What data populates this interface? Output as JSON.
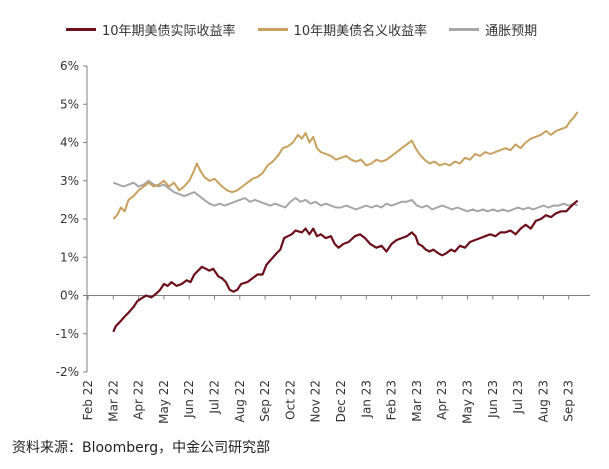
{
  "chart_data": {
    "type": "line",
    "title": "",
    "xlabel": "",
    "ylabel": "",
    "ylim": [
      -2,
      6
    ],
    "y_ticks": [
      "-2%",
      "-1%",
      "0%",
      "1%",
      "2%",
      "3%",
      "4%",
      "5%",
      "6%"
    ],
    "x_ticks": [
      "Feb 22",
      "Mar 22",
      "Apr 22",
      "May 22",
      "Jun 22",
      "Jul 22",
      "Aug 22",
      "Sep 22",
      "Oct 22",
      "Nov 22",
      "Dec 22",
      "Jan 23",
      "Feb 23",
      "Mar 23",
      "Apr 23",
      "May 23",
      "Jun 23",
      "Jul 23",
      "Aug 23",
      "Sep 23"
    ],
    "x_range": [
      "2022-02",
      "2023-09"
    ],
    "grid": false,
    "legend_position": "top",
    "x_unit": "months since Feb 22",
    "series": [
      {
        "name": "10年期美债实际收益率",
        "color": "#6b0f1a",
        "points": [
          [
            1.0,
            -0.95
          ],
          [
            1.1,
            -0.8
          ],
          [
            1.25,
            -0.7
          ],
          [
            1.45,
            -0.55
          ],
          [
            1.6,
            -0.45
          ],
          [
            1.8,
            -0.3
          ],
          [
            1.95,
            -0.15
          ],
          [
            2.1,
            -0.08
          ],
          [
            2.3,
            0.0
          ],
          [
            2.5,
            -0.05
          ],
          [
            2.7,
            0.05
          ],
          [
            2.85,
            0.15
          ],
          [
            3.0,
            0.3
          ],
          [
            3.15,
            0.25
          ],
          [
            3.3,
            0.35
          ],
          [
            3.5,
            0.25
          ],
          [
            3.7,
            0.3
          ],
          [
            3.9,
            0.4
          ],
          [
            4.05,
            0.35
          ],
          [
            4.2,
            0.55
          ],
          [
            4.35,
            0.65
          ],
          [
            4.5,
            0.75
          ],
          [
            4.65,
            0.7
          ],
          [
            4.8,
            0.65
          ],
          [
            4.95,
            0.7
          ],
          [
            5.05,
            0.6
          ],
          [
            5.15,
            0.5
          ],
          [
            5.3,
            0.45
          ],
          [
            5.45,
            0.35
          ],
          [
            5.6,
            0.15
          ],
          [
            5.75,
            0.1
          ],
          [
            5.9,
            0.15
          ],
          [
            6.05,
            0.3
          ],
          [
            6.3,
            0.35
          ],
          [
            6.5,
            0.45
          ],
          [
            6.7,
            0.55
          ],
          [
            6.9,
            0.55
          ],
          [
            7.05,
            0.8
          ],
          [
            7.25,
            0.95
          ],
          [
            7.45,
            1.1
          ],
          [
            7.6,
            1.2
          ],
          [
            7.75,
            1.5
          ],
          [
            7.9,
            1.55
          ],
          [
            8.05,
            1.6
          ],
          [
            8.2,
            1.7
          ],
          [
            8.45,
            1.65
          ],
          [
            8.6,
            1.75
          ],
          [
            8.75,
            1.6
          ],
          [
            8.9,
            1.75
          ],
          [
            9.05,
            1.55
          ],
          [
            9.2,
            1.6
          ],
          [
            9.4,
            1.5
          ],
          [
            9.6,
            1.55
          ],
          [
            9.75,
            1.35
          ],
          [
            9.9,
            1.25
          ],
          [
            10.0,
            1.3
          ],
          [
            10.1,
            1.35
          ],
          [
            10.3,
            1.4
          ],
          [
            10.55,
            1.55
          ],
          [
            10.75,
            1.6
          ],
          [
            10.95,
            1.5
          ],
          [
            11.15,
            1.35
          ],
          [
            11.4,
            1.25
          ],
          [
            11.6,
            1.3
          ],
          [
            11.8,
            1.15
          ],
          [
            12.0,
            1.35
          ],
          [
            12.2,
            1.45
          ],
          [
            12.4,
            1.5
          ],
          [
            12.6,
            1.55
          ],
          [
            12.8,
            1.65
          ],
          [
            12.95,
            1.55
          ],
          [
            13.05,
            1.35
          ],
          [
            13.2,
            1.3
          ],
          [
            13.35,
            1.2
          ],
          [
            13.5,
            1.15
          ],
          [
            13.65,
            1.2
          ],
          [
            13.85,
            1.1
          ],
          [
            14.0,
            1.05
          ],
          [
            14.15,
            1.1
          ],
          [
            14.35,
            1.2
          ],
          [
            14.5,
            1.15
          ],
          [
            14.7,
            1.3
          ],
          [
            14.9,
            1.25
          ],
          [
            15.1,
            1.4
          ],
          [
            15.3,
            1.45
          ],
          [
            15.5,
            1.5
          ],
          [
            15.7,
            1.55
          ],
          [
            15.9,
            1.6
          ],
          [
            16.1,
            1.55
          ],
          [
            16.3,
            1.65
          ],
          [
            16.5,
            1.65
          ],
          [
            16.7,
            1.7
          ],
          [
            16.9,
            1.6
          ],
          [
            17.1,
            1.75
          ],
          [
            17.3,
            1.85
          ],
          [
            17.5,
            1.75
          ],
          [
            17.7,
            1.95
          ],
          [
            17.9,
            2.0
          ],
          [
            18.1,
            2.1
          ],
          [
            18.3,
            2.05
          ],
          [
            18.5,
            2.15
          ],
          [
            18.7,
            2.2
          ],
          [
            18.9,
            2.2
          ],
          [
            19.05,
            2.3
          ],
          [
            19.2,
            2.4
          ],
          [
            19.35,
            2.48
          ]
        ]
      },
      {
        "name": "10年期美债名义收益率",
        "color": "#c8a060",
        "points": [
          [
            1.0,
            2.0
          ],
          [
            1.15,
            2.1
          ],
          [
            1.3,
            2.3
          ],
          [
            1.45,
            2.2
          ],
          [
            1.6,
            2.5
          ],
          [
            1.8,
            2.6
          ],
          [
            2.0,
            2.75
          ],
          [
            2.2,
            2.85
          ],
          [
            2.4,
            2.95
          ],
          [
            2.6,
            2.85
          ],
          [
            2.8,
            2.9
          ],
          [
            3.0,
            3.0
          ],
          [
            3.2,
            2.85
          ],
          [
            3.4,
            2.95
          ],
          [
            3.6,
            2.75
          ],
          [
            3.8,
            2.85
          ],
          [
            4.0,
            3.0
          ],
          [
            4.15,
            3.2
          ],
          [
            4.3,
            3.45
          ],
          [
            4.45,
            3.25
          ],
          [
            4.6,
            3.1
          ],
          [
            4.8,
            3.0
          ],
          [
            5.0,
            3.05
          ],
          [
            5.15,
            2.95
          ],
          [
            5.3,
            2.85
          ],
          [
            5.5,
            2.75
          ],
          [
            5.7,
            2.7
          ],
          [
            5.9,
            2.75
          ],
          [
            6.1,
            2.85
          ],
          [
            6.3,
            2.95
          ],
          [
            6.5,
            3.05
          ],
          [
            6.7,
            3.1
          ],
          [
            6.9,
            3.2
          ],
          [
            7.1,
            3.4
          ],
          [
            7.3,
            3.5
          ],
          [
            7.5,
            3.65
          ],
          [
            7.7,
            3.85
          ],
          [
            7.9,
            3.9
          ],
          [
            8.1,
            4.0
          ],
          [
            8.3,
            4.2
          ],
          [
            8.45,
            4.1
          ],
          [
            8.6,
            4.25
          ],
          [
            8.75,
            4.0
          ],
          [
            8.9,
            4.15
          ],
          [
            9.05,
            3.85
          ],
          [
            9.2,
            3.75
          ],
          [
            9.4,
            3.7
          ],
          [
            9.6,
            3.65
          ],
          [
            9.8,
            3.55
          ],
          [
            10.0,
            3.6
          ],
          [
            10.2,
            3.65
          ],
          [
            10.4,
            3.55
          ],
          [
            10.6,
            3.5
          ],
          [
            10.8,
            3.55
          ],
          [
            11.0,
            3.4
          ],
          [
            11.2,
            3.45
          ],
          [
            11.4,
            3.55
          ],
          [
            11.6,
            3.5
          ],
          [
            11.8,
            3.55
          ],
          [
            12.0,
            3.65
          ],
          [
            12.2,
            3.75
          ],
          [
            12.4,
            3.85
          ],
          [
            12.6,
            3.95
          ],
          [
            12.8,
            4.05
          ],
          [
            12.95,
            3.85
          ],
          [
            13.1,
            3.7
          ],
          [
            13.3,
            3.55
          ],
          [
            13.5,
            3.45
          ],
          [
            13.7,
            3.5
          ],
          [
            13.9,
            3.4
          ],
          [
            14.1,
            3.45
          ],
          [
            14.3,
            3.4
          ],
          [
            14.5,
            3.5
          ],
          [
            14.7,
            3.45
          ],
          [
            14.9,
            3.6
          ],
          [
            15.1,
            3.55
          ],
          [
            15.3,
            3.7
          ],
          [
            15.5,
            3.65
          ],
          [
            15.7,
            3.75
          ],
          [
            15.9,
            3.7
          ],
          [
            16.1,
            3.75
          ],
          [
            16.3,
            3.8
          ],
          [
            16.5,
            3.85
          ],
          [
            16.7,
            3.8
          ],
          [
            16.9,
            3.95
          ],
          [
            17.1,
            3.85
          ],
          [
            17.3,
            4.0
          ],
          [
            17.5,
            4.1
          ],
          [
            17.7,
            4.15
          ],
          [
            17.9,
            4.2
          ],
          [
            18.1,
            4.3
          ],
          [
            18.3,
            4.2
          ],
          [
            18.5,
            4.3
          ],
          [
            18.7,
            4.35
          ],
          [
            18.9,
            4.4
          ],
          [
            19.05,
            4.55
          ],
          [
            19.2,
            4.65
          ],
          [
            19.35,
            4.8
          ]
        ]
      },
      {
        "name": "通胀预期",
        "color": "#a6a6a6",
        "points": [
          [
            1.0,
            2.95
          ],
          [
            1.2,
            2.9
          ],
          [
            1.4,
            2.85
          ],
          [
            1.6,
            2.9
          ],
          [
            1.8,
            2.95
          ],
          [
            2.0,
            2.85
          ],
          [
            2.2,
            2.9
          ],
          [
            2.4,
            3.0
          ],
          [
            2.6,
            2.9
          ],
          [
            2.8,
            2.85
          ],
          [
            3.0,
            2.9
          ],
          [
            3.2,
            2.8
          ],
          [
            3.4,
            2.7
          ],
          [
            3.6,
            2.65
          ],
          [
            3.8,
            2.6
          ],
          [
            4.0,
            2.65
          ],
          [
            4.2,
            2.7
          ],
          [
            4.4,
            2.6
          ],
          [
            4.6,
            2.5
          ],
          [
            4.8,
            2.4
          ],
          [
            5.0,
            2.35
          ],
          [
            5.2,
            2.4
          ],
          [
            5.4,
            2.35
          ],
          [
            5.6,
            2.4
          ],
          [
            5.8,
            2.45
          ],
          [
            6.0,
            2.5
          ],
          [
            6.2,
            2.55
          ],
          [
            6.4,
            2.45
          ],
          [
            6.6,
            2.5
          ],
          [
            6.8,
            2.45
          ],
          [
            7.0,
            2.4
          ],
          [
            7.2,
            2.35
          ],
          [
            7.4,
            2.4
          ],
          [
            7.6,
            2.35
          ],
          [
            7.8,
            2.3
          ],
          [
            8.0,
            2.45
          ],
          [
            8.2,
            2.55
          ],
          [
            8.4,
            2.45
          ],
          [
            8.6,
            2.5
          ],
          [
            8.8,
            2.4
          ],
          [
            9.0,
            2.45
          ],
          [
            9.2,
            2.35
          ],
          [
            9.4,
            2.4
          ],
          [
            9.6,
            2.35
          ],
          [
            9.8,
            2.3
          ],
          [
            10.0,
            2.3
          ],
          [
            10.2,
            2.35
          ],
          [
            10.4,
            2.3
          ],
          [
            10.6,
            2.25
          ],
          [
            10.8,
            2.3
          ],
          [
            11.0,
            2.35
          ],
          [
            11.2,
            2.3
          ],
          [
            11.4,
            2.35
          ],
          [
            11.6,
            2.3
          ],
          [
            11.8,
            2.4
          ],
          [
            12.0,
            2.35
          ],
          [
            12.2,
            2.4
          ],
          [
            12.4,
            2.45
          ],
          [
            12.6,
            2.45
          ],
          [
            12.8,
            2.5
          ],
          [
            13.0,
            2.35
          ],
          [
            13.2,
            2.3
          ],
          [
            13.4,
            2.35
          ],
          [
            13.6,
            2.25
          ],
          [
            13.8,
            2.3
          ],
          [
            14.0,
            2.35
          ],
          [
            14.2,
            2.3
          ],
          [
            14.4,
            2.25
          ],
          [
            14.6,
            2.3
          ],
          [
            14.8,
            2.25
          ],
          [
            15.0,
            2.2
          ],
          [
            15.2,
            2.25
          ],
          [
            15.4,
            2.2
          ],
          [
            15.6,
            2.25
          ],
          [
            15.8,
            2.2
          ],
          [
            16.0,
            2.25
          ],
          [
            16.2,
            2.2
          ],
          [
            16.4,
            2.25
          ],
          [
            16.6,
            2.2
          ],
          [
            16.8,
            2.25
          ],
          [
            17.0,
            2.3
          ],
          [
            17.2,
            2.25
          ],
          [
            17.4,
            2.3
          ],
          [
            17.6,
            2.25
          ],
          [
            17.8,
            2.3
          ],
          [
            18.0,
            2.35
          ],
          [
            18.2,
            2.3
          ],
          [
            18.4,
            2.35
          ],
          [
            18.6,
            2.35
          ],
          [
            18.8,
            2.4
          ],
          [
            19.0,
            2.35
          ],
          [
            19.2,
            2.4
          ],
          [
            19.35,
            2.35
          ]
        ]
      }
    ]
  },
  "footer": {
    "source": "资料来源：Bloomberg，中金公司研究部"
  }
}
